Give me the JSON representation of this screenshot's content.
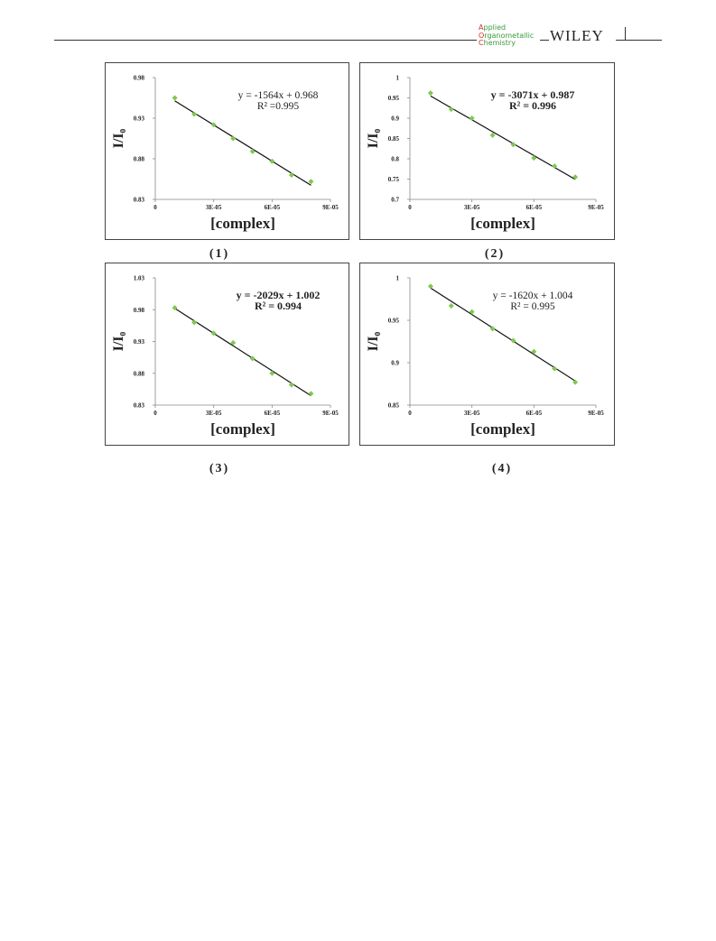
{
  "header": {
    "journal": [
      "Applied",
      "Organometallic",
      "Chemistry"
    ],
    "publisher": "WILEY"
  },
  "panel_labels": [
    "(1)",
    "(2)",
    "(3)",
    "(4)"
  ],
  "chart_data": [
    {
      "type": "scatter",
      "xlabel": "[complex]",
      "ylabel": "I/I₀",
      "x": [
        1e-05,
        2e-05,
        3e-05,
        4e-05,
        5e-05,
        6e-05,
        7e-05,
        8e-05
      ],
      "series": [
        {
          "color": "#7ec850",
          "values": [
            0.955,
            0.935,
            0.922,
            0.905,
            0.889,
            0.877,
            0.86,
            0.852
          ]
        }
      ],
      "xlim": [
        0,
        9e-05
      ],
      "xticks": [
        0,
        {
          "value": 3e-05,
          "label": "3E-05"
        },
        {
          "value": 6e-05,
          "label": "6E-05"
        },
        {
          "value": 9e-05,
          "label": "9E-05"
        }
      ],
      "ylim": [
        0.83,
        0.98
      ],
      "yticks": [
        0.83,
        0.88,
        0.93,
        0.98
      ],
      "annotations": [
        "y = -1564x + 0.968",
        "R² =0.995"
      ],
      "annotation_bold": false
    },
    {
      "type": "scatter",
      "xlabel": "[complex]",
      "ylabel": "I/I₀",
      "x": [
        1e-05,
        2e-05,
        3e-05,
        4e-05,
        5e-05,
        6e-05,
        7e-05,
        8e-05
      ],
      "series": [
        {
          "color": "#7ec850",
          "values": [
            0.962,
            0.922,
            0.9,
            0.858,
            0.835,
            0.802,
            0.782,
            0.755
          ]
        }
      ],
      "xlim": [
        0,
        9e-05
      ],
      "xticks": [
        0,
        {
          "value": 3e-05,
          "label": "3E-05"
        },
        {
          "value": 6e-05,
          "label": "6E-05"
        },
        {
          "value": 9e-05,
          "label": "9E-05"
        }
      ],
      "ylim": [
        0.7,
        1
      ],
      "yticks": [
        0.7,
        0.75,
        0.8,
        0.85,
        0.9,
        0.95,
        1
      ],
      "annotations": [
        "y = -3071x + 0.987",
        "R² = 0.996"
      ],
      "annotation_bold": true
    },
    {
      "type": "scatter",
      "xlabel": "[complex]",
      "ylabel": "I/I₀",
      "x": [
        1e-05,
        2e-05,
        3e-05,
        4e-05,
        5e-05,
        6e-05,
        7e-05,
        8e-05
      ],
      "series": [
        {
          "color": "#7ec850",
          "values": [
            0.983,
            0.96,
            0.943,
            0.928,
            0.903,
            0.88,
            0.862,
            0.848
          ]
        }
      ],
      "xlim": [
        0,
        9e-05
      ],
      "xticks": [
        0,
        {
          "value": 3e-05,
          "label": "3E-05"
        },
        {
          "value": 6e-05,
          "label": "6E-05"
        },
        {
          "value": 9e-05,
          "label": "9E-05"
        }
      ],
      "ylim": [
        0.83,
        1.03
      ],
      "yticks": [
        0.83,
        0.88,
        0.93,
        0.98,
        1.03
      ],
      "annotations": [
        "y = -2029x + 1.002",
        "R² = 0.994"
      ],
      "annotation_bold": true
    },
    {
      "type": "scatter",
      "xlabel": "[complex]",
      "ylabel": "I/I₀",
      "x": [
        1e-05,
        2e-05,
        3e-05,
        4e-05,
        5e-05,
        6e-05,
        7e-05,
        8e-05
      ],
      "series": [
        {
          "color": "#7ec850",
          "values": [
            0.99,
            0.967,
            0.96,
            0.94,
            0.926,
            0.913,
            0.893,
            0.877
          ]
        }
      ],
      "xlim": [
        0,
        9e-05
      ],
      "xticks": [
        0,
        {
          "value": 3e-05,
          "label": "3E-05"
        },
        {
          "value": 6e-05,
          "label": "6E-05"
        },
        {
          "value": 9e-05,
          "label": "9E-05"
        }
      ],
      "ylim": [
        0.85,
        1
      ],
      "yticks": [
        0.85,
        0.9,
        0.95,
        1
      ],
      "annotations": [
        "y = -1620x + 1.004",
        "R² = 0.995"
      ],
      "annotation_bold": false
    }
  ]
}
